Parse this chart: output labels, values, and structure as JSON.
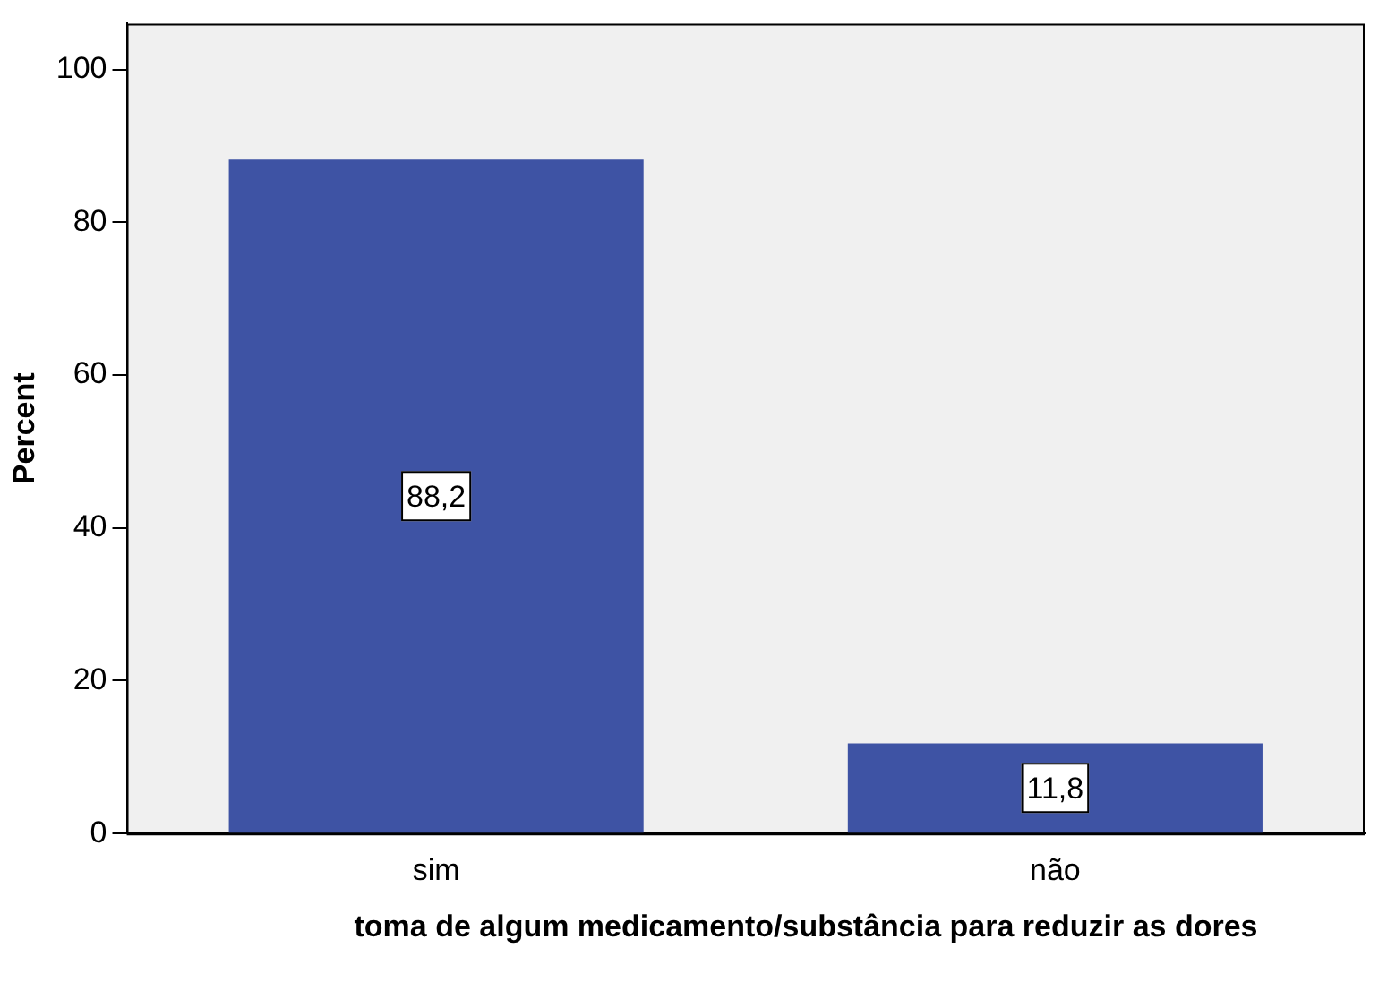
{
  "chart_data": {
    "type": "bar",
    "xlabel": "toma de algum medicamento/substância para reduzir as dores",
    "ylabel": "Percent",
    "categories": [
      "sim",
      "não"
    ],
    "values": [
      88.2,
      11.8
    ],
    "value_labels": [
      "88,2",
      "11,8"
    ],
    "color": "#3e53a4",
    "ylim": [
      0,
      106
    ],
    "yticks": [
      0,
      20,
      40,
      60,
      80,
      100
    ],
    "grid": false
  }
}
